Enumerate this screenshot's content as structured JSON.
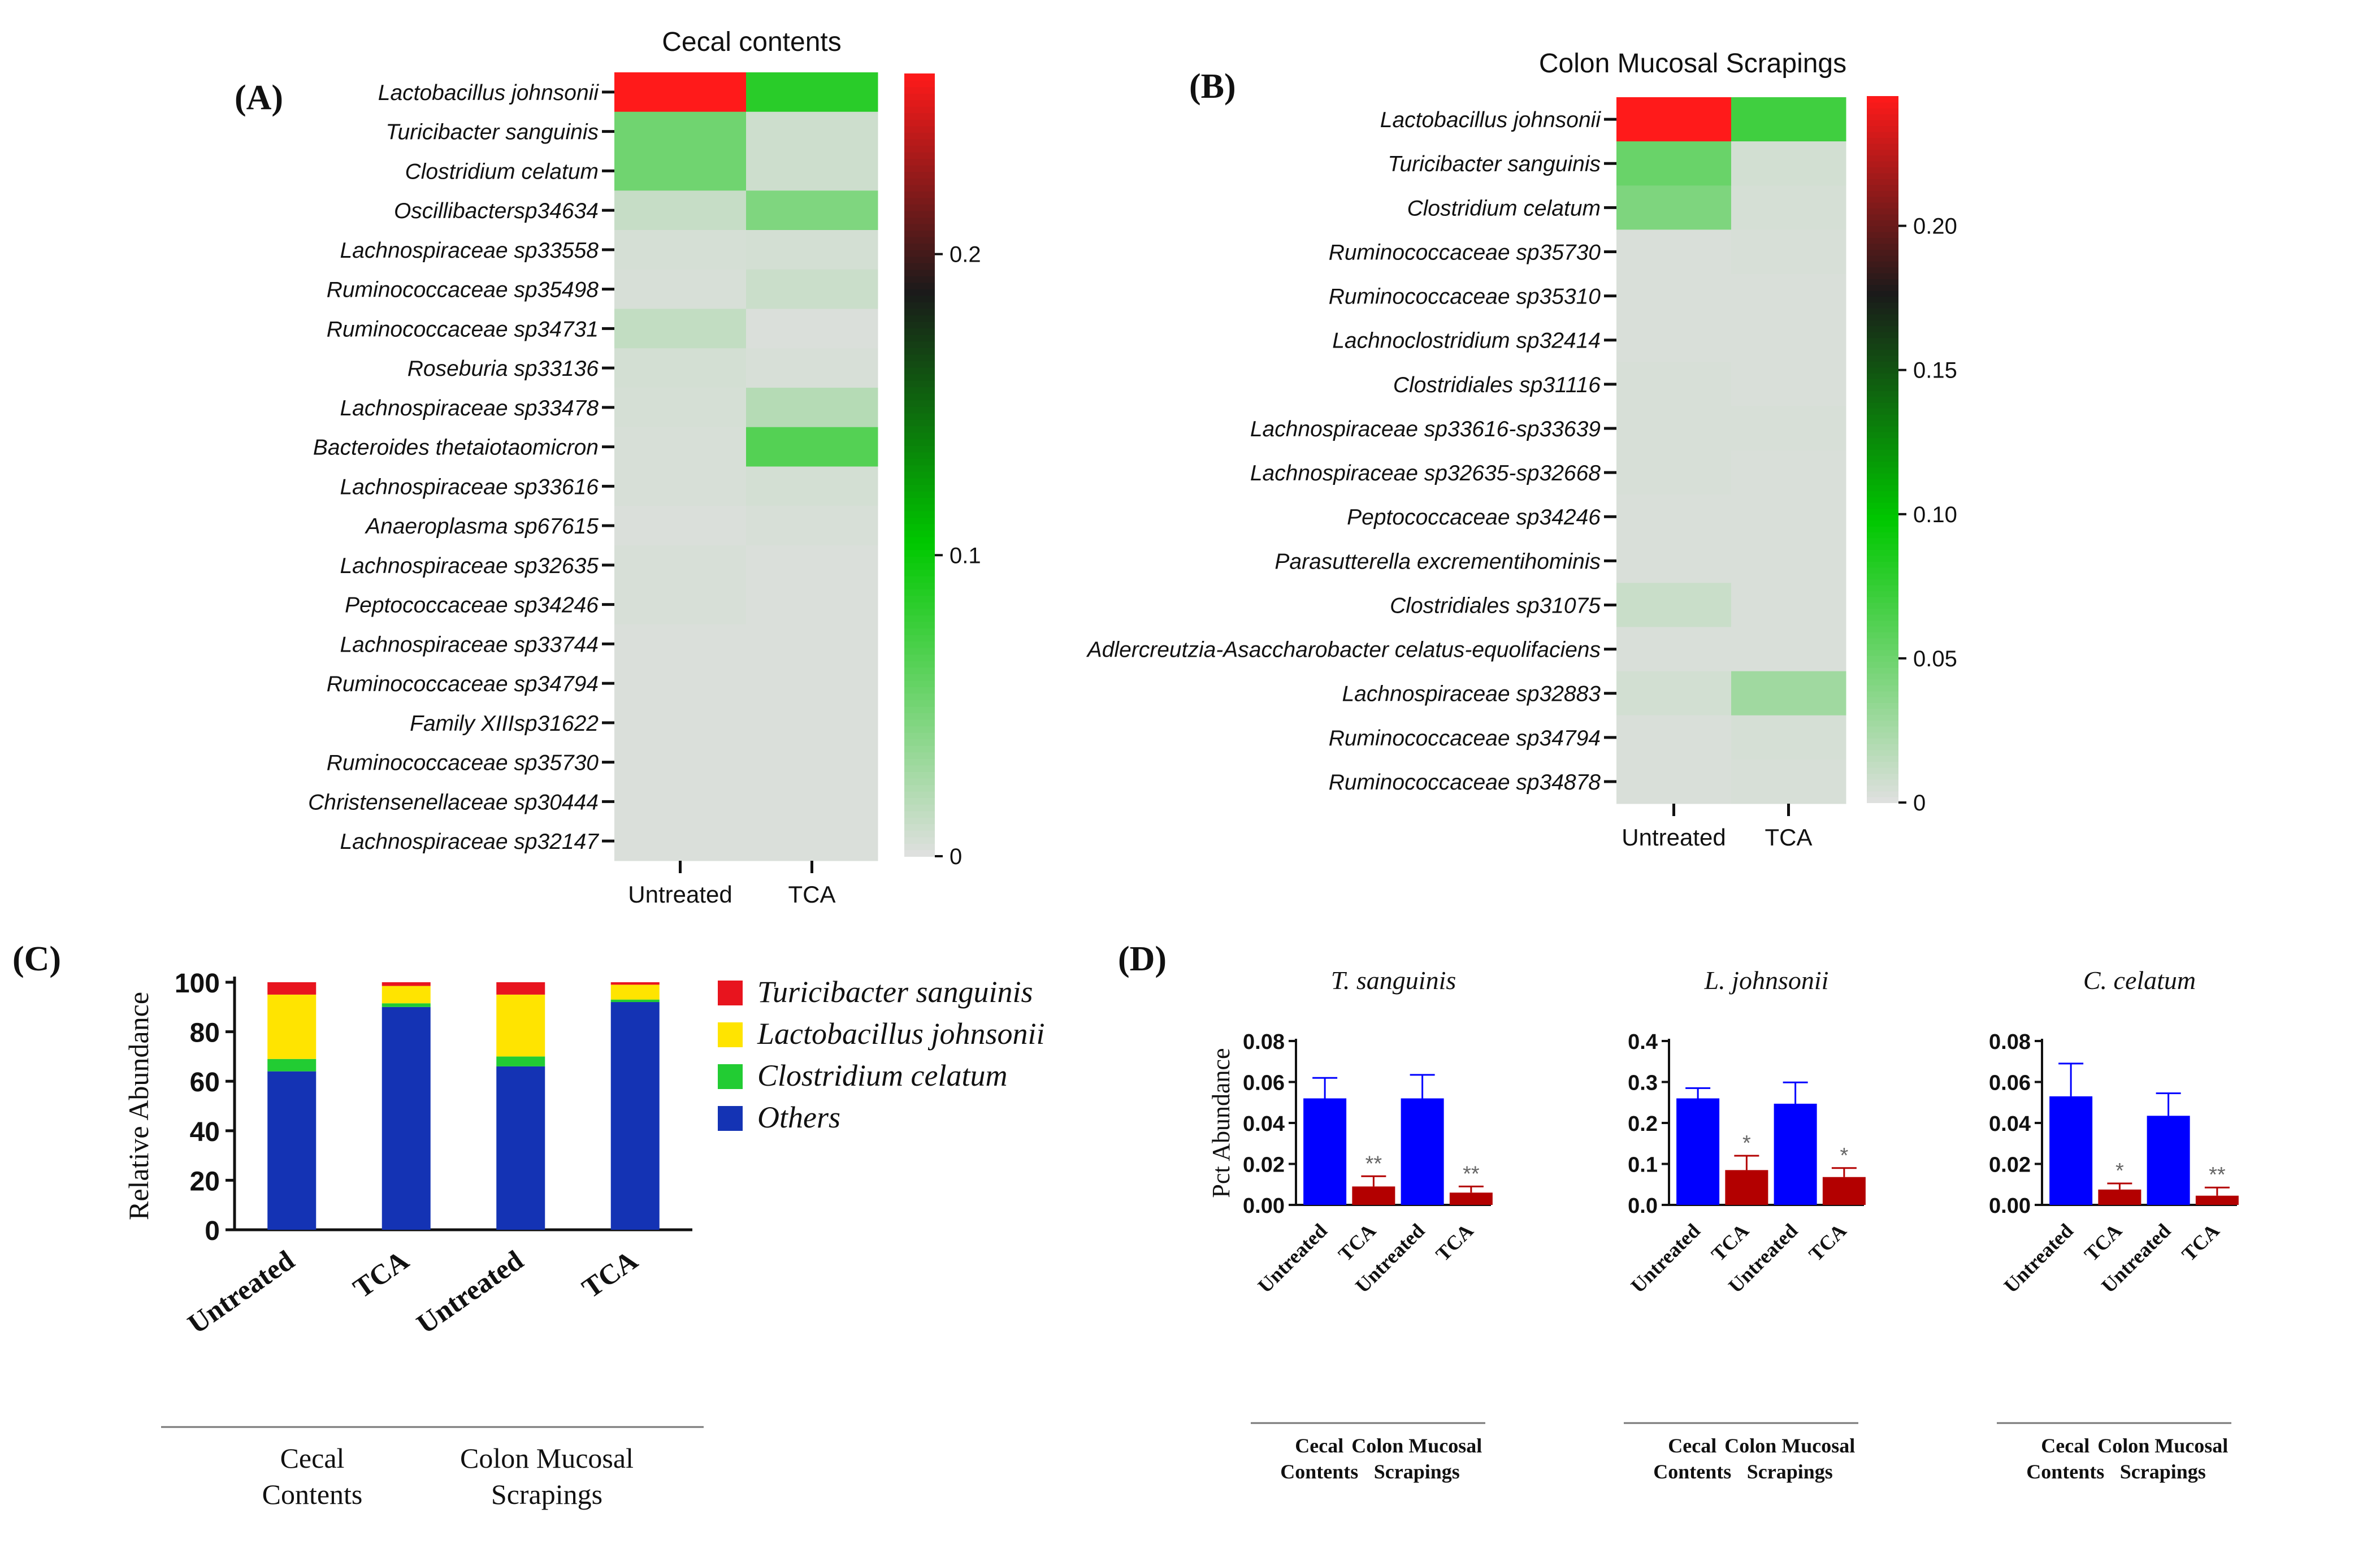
{
  "panel_labels": {
    "A": "(A)",
    "B": "(B)",
    "C": "(C)",
    "D": "(D)"
  },
  "colors": {
    "red": "#ff1a1a",
    "black": "#1a1a1a",
    "green": "#00c800",
    "grey": "#e0e0e0",
    "bar_blue": "#0000ff",
    "bar_red": "#b30000",
    "stack_others": "#1433b4",
    "stack_clostridium": "#22cc33",
    "stack_lactobacillus": "#ffe400",
    "stack_turicibacter": "#e8141e"
  },
  "chart_data": [
    {
      "id": "A",
      "type": "heatmap",
      "title": "Cecal contents",
      "columns": [
        "Untreated",
        "TCA"
      ],
      "rows": [
        "Lactobacillus johnsonii",
        "Turicibacter sanguinis",
        "Clostridium celatum",
        "Oscillibactersp34634",
        "Lachnospiraceae sp33558",
        "Ruminococcaceae sp35498",
        "Ruminococcaceae sp34731",
        "Roseburia sp33136",
        "Lachnospiraceae sp33478",
        "Bacteroides thetaiotaomicron",
        "Lachnospiraceae sp33616",
        "Anaeroplasma sp67615",
        "Lachnospiraceae sp32635",
        "Peptococcaceae sp34246",
        "Lachnospiraceae sp33744",
        "Ruminococcaceae sp34794",
        "Family XIIIsp31622",
        "Ruminococcaceae sp35730",
        "Christensenellaceae sp30444",
        "Lachnospiraceae sp32147"
      ],
      "values": [
        [
          0.26,
          0.085
        ],
        [
          0.052,
          0.009
        ],
        [
          0.052,
          0.009
        ],
        [
          0.012,
          0.045
        ],
        [
          0.005,
          0.006
        ],
        [
          0.004,
          0.01
        ],
        [
          0.014,
          0.003
        ],
        [
          0.006,
          0.004
        ],
        [
          0.005,
          0.02
        ],
        [
          0.004,
          0.065
        ],
        [
          0.004,
          0.006
        ],
        [
          0.003,
          0.004
        ],
        [
          0.004,
          0.003
        ],
        [
          0.004,
          0.003
        ],
        [
          0.003,
          0.003
        ],
        [
          0.003,
          0.003
        ],
        [
          0.003,
          0.003
        ],
        [
          0.003,
          0.003
        ],
        [
          0.003,
          0.003
        ],
        [
          0.003,
          0.003
        ]
      ],
      "scale": {
        "min": 0,
        "max": 0.26,
        "ticks": [
          0,
          0.1,
          0.2
        ],
        "tick_labels": [
          "0",
          "0.1",
          "0.2"
        ]
      }
    },
    {
      "id": "B",
      "type": "heatmap",
      "title": "Colon Mucosal Scrapings",
      "columns": [
        "Untreated",
        "TCA"
      ],
      "rows": [
        "Lactobacillus johnsonii",
        "Turicibacter sanguinis",
        "Clostridium celatum",
        "Ruminococcaceae sp35730",
        "Ruminococcaceae sp35310",
        "Lachnoclostridium sp32414",
        "Clostridiales sp31116",
        "Lachnospiraceae sp33616-sp33639",
        "Lachnospiraceae sp32635-sp32668",
        "Peptococcaceae sp34246",
        "Parasutterella excrementihominis",
        "Clostridiales sp31075",
        "Adlercreutzia-Asaccharobacter celatus-equolifaciens",
        "Lachnospiraceae sp32883",
        "Ruminococcaceae sp34794",
        "Ruminococcaceae sp34878"
      ],
      "values": [
        [
          0.245,
          0.07
        ],
        [
          0.052,
          0.006
        ],
        [
          0.043,
          0.005
        ],
        [
          0.003,
          0.004
        ],
        [
          0.003,
          0.003
        ],
        [
          0.003,
          0.003
        ],
        [
          0.004,
          0.003
        ],
        [
          0.004,
          0.004
        ],
        [
          0.004,
          0.003
        ],
        [
          0.003,
          0.003
        ],
        [
          0.003,
          0.003
        ],
        [
          0.01,
          0.003
        ],
        [
          0.003,
          0.003
        ],
        [
          0.006,
          0.028
        ],
        [
          0.003,
          0.005
        ],
        [
          0.003,
          0.004
        ]
      ],
      "scale": {
        "min": 0,
        "max": 0.245,
        "ticks": [
          0,
          0.05,
          0.1,
          0.15,
          0.2
        ],
        "tick_labels": [
          "0",
          "0.05",
          "0.10",
          "0.15",
          "0.20"
        ]
      }
    },
    {
      "id": "C",
      "type": "bar",
      "stacked": true,
      "ylabel": "Relative Abundance",
      "ylim": [
        0,
        100
      ],
      "yticks": [
        0,
        20,
        40,
        60,
        80,
        100
      ],
      "categories": [
        "Untreated",
        "TCA",
        "Untreated",
        "TCA"
      ],
      "group_labels": [
        {
          "text": [
            "Cecal",
            "Contents"
          ],
          "span": [
            0,
            1
          ]
        },
        {
          "text": [
            "Colon Mucosal",
            "Scrapings"
          ],
          "span": [
            2,
            3
          ]
        }
      ],
      "series": [
        {
          "name": "Others",
          "color": "#1433b4",
          "values": [
            64,
            90,
            66,
            92
          ]
        },
        {
          "name": "Clostridium celatum",
          "color": "#22cc33",
          "values": [
            5,
            1.5,
            4,
            1
          ]
        },
        {
          "name": "Lactobacillus johnsonii",
          "color": "#ffe400",
          "values": [
            26,
            7,
            25,
            6
          ]
        },
        {
          "name": "Turicibacter sanguinis",
          "color": "#e8141e",
          "values": [
            5,
            1.5,
            5,
            1
          ]
        }
      ],
      "legend_order": [
        "Turicibacter sanguinis",
        "Lactobacillus johnsonii",
        "Clostridium celatum",
        "Others"
      ]
    },
    {
      "id": "D",
      "type": "bar",
      "ylabel": "Pct Abundance",
      "categories": [
        "Untreated",
        "TCA",
        "Untreated",
        "TCA"
      ],
      "group_labels": [
        {
          "text": [
            "Cecal",
            "Contents"
          ],
          "span": [
            0,
            1
          ]
        },
        {
          "text": [
            "Colon Mucosal",
            "Scrapings"
          ],
          "span": [
            2,
            3
          ]
        }
      ],
      "subplots": [
        {
          "title": "T.  sanguinis",
          "ylim": [
            0,
            0.08
          ],
          "yticks": [
            0,
            0.02,
            0.04,
            0.06,
            0.08
          ],
          "ytick_labels": [
            "0.00",
            "0.02",
            "0.04",
            "0.06",
            "0.08"
          ],
          "values": [
            0.052,
            0.009,
            0.052,
            0.006
          ],
          "errors": [
            0.01,
            0.005,
            0.0115,
            0.003
          ],
          "significance": [
            "",
            "**",
            "",
            "**"
          ]
        },
        {
          "title": "L. johnsonii",
          "ylim": [
            0,
            0.4
          ],
          "yticks": [
            0,
            0.1,
            0.2,
            0.3,
            0.4
          ],
          "ytick_labels": [
            "0.0",
            "0.1",
            "0.2",
            "0.3",
            "0.4"
          ],
          "values": [
            0.26,
            0.085,
            0.247,
            0.068
          ],
          "errors": [
            0.025,
            0.035,
            0.052,
            0.022
          ],
          "significance": [
            "",
            "*",
            "",
            "*"
          ]
        },
        {
          "title": "C. celatum",
          "ylim": [
            0,
            0.08
          ],
          "yticks": [
            0,
            0.02,
            0.04,
            0.06,
            0.08
          ],
          "ytick_labels": [
            "0.00",
            "0.02",
            "0.04",
            "0.06",
            "0.08"
          ],
          "values": [
            0.053,
            0.0075,
            0.0435,
            0.0045
          ],
          "errors": [
            0.016,
            0.003,
            0.011,
            0.004
          ],
          "significance": [
            "",
            "*",
            "",
            "**"
          ]
        }
      ]
    }
  ]
}
